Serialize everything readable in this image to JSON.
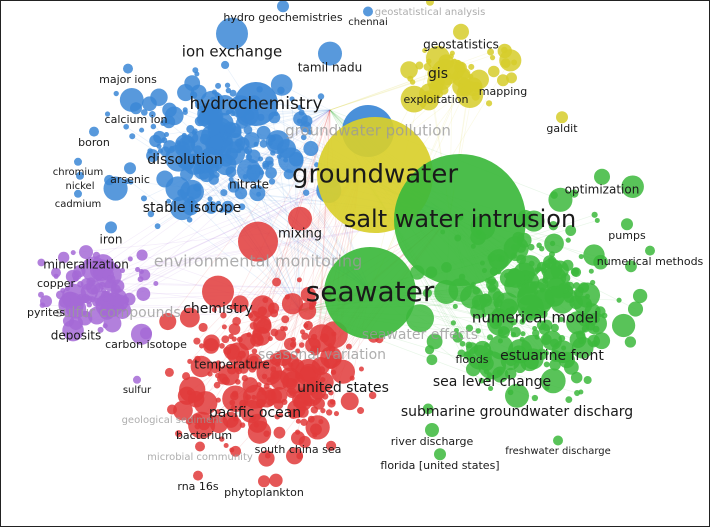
{
  "nodes": [
    {
      "label": "hydro geochemistries",
      "color": "#3b87d6"
    },
    {
      "label": "chennai",
      "color": "#3b87d6"
    },
    {
      "label": "ion exchange",
      "color": "#3b87d6"
    },
    {
      "label": "tamil nadu",
      "color": "#3b87d6"
    },
    {
      "label": "major ions",
      "color": "#3b87d6"
    },
    {
      "label": "hydrochemistry",
      "color": "#3b87d6"
    },
    {
      "label": "calcium ion",
      "color": "#3b87d6"
    },
    {
      "label": "boron",
      "color": "#3b87d6"
    },
    {
      "label": "dissolution",
      "color": "#3b87d6"
    },
    {
      "label": "chromium",
      "color": "#3b87d6"
    },
    {
      "label": "arsenic",
      "color": "#3b87d6"
    },
    {
      "label": "nickel",
      "color": "#3b87d6"
    },
    {
      "label": "cadmium",
      "color": "#3b87d6"
    },
    {
      "label": "nitrate",
      "color": "#3b87d6"
    },
    {
      "label": "stable isotope",
      "color": "#3b87d6"
    },
    {
      "label": "iron",
      "color": "#3b87d6"
    },
    {
      "label": "groundwater pollution",
      "color": "#3b87d6"
    },
    {
      "label": "geostatistical analysis",
      "color": "#d6cc2a"
    },
    {
      "label": "geostatistics",
      "color": "#d6cc2a"
    },
    {
      "label": "gis",
      "color": "#d6cc2a"
    },
    {
      "label": "mapping",
      "color": "#d6cc2a"
    },
    {
      "label": "exploitation",
      "color": "#d6cc2a"
    },
    {
      "label": "galdit",
      "color": "#d6cc2a"
    },
    {
      "label": "groundwater",
      "color": "#d9cf2b"
    },
    {
      "label": "salt water intrusion",
      "color": "#3cb93c"
    },
    {
      "label": "seawater",
      "color": "#3cb93c"
    },
    {
      "label": "optimization",
      "color": "#3cb93c"
    },
    {
      "label": "pumps",
      "color": "#3cb93c"
    },
    {
      "label": "numerical methods",
      "color": "#3cb93c"
    },
    {
      "label": "numerical model",
      "color": "#3cb93c"
    },
    {
      "label": "seawater effects",
      "color": "#3cb93c"
    },
    {
      "label": "estuarine front",
      "color": "#3cb93c"
    },
    {
      "label": "floods",
      "color": "#3cb93c"
    },
    {
      "label": "sea level change",
      "color": "#3cb93c"
    },
    {
      "label": "submarine groundwater discharg",
      "color": "#3cb93c"
    },
    {
      "label": "river discharge",
      "color": "#3cb93c"
    },
    {
      "label": "freshwater discharge",
      "color": "#3cb93c"
    },
    {
      "label": "florida [united states]",
      "color": "#3cb93c"
    },
    {
      "label": "mineralization",
      "color": "#a56ad6"
    },
    {
      "label": "copper",
      "color": "#a56ad6"
    },
    {
      "label": "sulfur compounds",
      "color": "#a56ad6"
    },
    {
      "label": "pyrites",
      "color": "#a56ad6"
    },
    {
      "label": "deposits",
      "color": "#a56ad6"
    },
    {
      "label": "carbon isotope",
      "color": "#a56ad6"
    },
    {
      "label": "sulfur",
      "color": "#a56ad6"
    },
    {
      "label": "mixing",
      "color": "#e03a3a"
    },
    {
      "label": "environmental monitoring",
      "color": "#e03a3a"
    },
    {
      "label": "chemistry",
      "color": "#e03a3a"
    },
    {
      "label": "temperature",
      "color": "#e03a3a"
    },
    {
      "label": "seasonal variation",
      "color": "#e03a3a"
    },
    {
      "label": "united states",
      "color": "#e03a3a"
    },
    {
      "label": "pacific ocean",
      "color": "#e03a3a"
    },
    {
      "label": "bacterium",
      "color": "#e03a3a"
    },
    {
      "label": "south china sea",
      "color": "#e03a3a"
    },
    {
      "label": "microbial community",
      "color": "#e03a3a"
    },
    {
      "label": "geological sediment",
      "color": "#e03a3a"
    },
    {
      "label": "rna 16s",
      "color": "#e03a3a"
    },
    {
      "label": "phytoplankton",
      "color": "#e03a3a"
    }
  ]
}
